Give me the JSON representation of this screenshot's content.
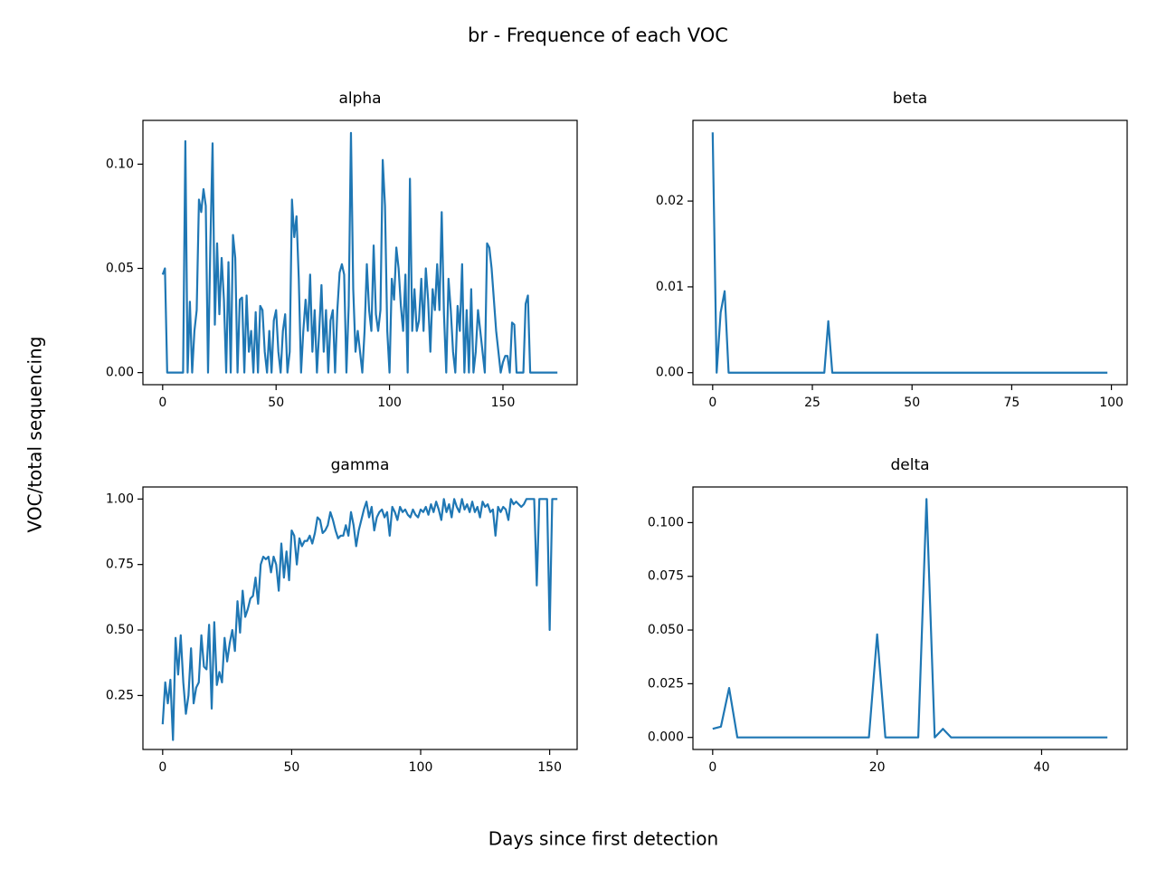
{
  "title": "br - Frequence of each VOC",
  "x_label": "Days since first detection",
  "y_label": "VOC/total sequencing",
  "chart_data": [
    {
      "type": "line",
      "title": "alpha",
      "color": "#1f77b4",
      "x": [
        0,
        1,
        2,
        3,
        4,
        5,
        6,
        7,
        8,
        9,
        10,
        11,
        12,
        13,
        14,
        15,
        16,
        17,
        18,
        19,
        20,
        21,
        22,
        23,
        24,
        25,
        26,
        27,
        28,
        29,
        30,
        31,
        32,
        33,
        34,
        35,
        36,
        37,
        38,
        39,
        40,
        41,
        42,
        43,
        44,
        45,
        46,
        47,
        48,
        49,
        50,
        51,
        52,
        53,
        54,
        55,
        56,
        57,
        58,
        59,
        60,
        61,
        62,
        63,
        64,
        65,
        66,
        67,
        68,
        69,
        70,
        71,
        72,
        73,
        74,
        75,
        76,
        77,
        78,
        79,
        80,
        81,
        82,
        83,
        84,
        85,
        86,
        87,
        88,
        89,
        90,
        91,
        92,
        93,
        94,
        95,
        96,
        97,
        98,
        99,
        100,
        101,
        102,
        103,
        104,
        105,
        106,
        107,
        108,
        109,
        110,
        111,
        112,
        113,
        114,
        115,
        116,
        117,
        118,
        119,
        120,
        121,
        122,
        123,
        124,
        125,
        126,
        127,
        128,
        129,
        130,
        131,
        132,
        133,
        134,
        135,
        136,
        137,
        138,
        139,
        140,
        141,
        142,
        143,
        144,
        145,
        146,
        147,
        148,
        149,
        150,
        151,
        152,
        153,
        154,
        155,
        156,
        157,
        158,
        159,
        160,
        161,
        162,
        163,
        164,
        165,
        166,
        167,
        168,
        169,
        170,
        171,
        172,
        173,
        174
      ],
      "values": [
        0.047,
        0.05,
        0,
        0,
        0,
        0,
        0,
        0,
        0,
        0,
        0.111,
        0,
        0.034,
        0,
        0.02,
        0.03,
        0.083,
        0.077,
        0.088,
        0.08,
        0,
        0.06,
        0.11,
        0.023,
        0.062,
        0.028,
        0.055,
        0.035,
        0,
        0.053,
        0,
        0.066,
        0.055,
        0,
        0.035,
        0.036,
        0,
        0.037,
        0.01,
        0.02,
        0,
        0.029,
        0,
        0.032,
        0.03,
        0.01,
        0,
        0.02,
        0,
        0.025,
        0.03,
        0.01,
        0,
        0.02,
        0.028,
        0,
        0.01,
        0.083,
        0.065,
        0.075,
        0.045,
        0,
        0.02,
        0.035,
        0.02,
        0.047,
        0.01,
        0.03,
        0,
        0.02,
        0.042,
        0.01,
        0.03,
        0,
        0.025,
        0.03,
        0,
        0.03,
        0.048,
        0.052,
        0.047,
        0,
        0.032,
        0.115,
        0.04,
        0.01,
        0.02,
        0.01,
        0,
        0.02,
        0.052,
        0.03,
        0.02,
        0.061,
        0.028,
        0.02,
        0.03,
        0.102,
        0.08,
        0.02,
        0,
        0.045,
        0.035,
        0.06,
        0.05,
        0.032,
        0.02,
        0.047,
        0,
        0.093,
        0.02,
        0.04,
        0.02,
        0.025,
        0.045,
        0.02,
        0.05,
        0.035,
        0.01,
        0.04,
        0.03,
        0.052,
        0.03,
        0.077,
        0.028,
        0,
        0.045,
        0.03,
        0.01,
        0,
        0.032,
        0.02,
        0.052,
        0,
        0.03,
        0,
        0.04,
        0,
        0.01,
        0.03,
        0.02,
        0.01,
        0,
        0.062,
        0.06,
        0.05,
        0.035,
        0.02,
        0.01,
        0,
        0.005,
        0.008,
        0.008,
        0,
        0.024,
        0.023,
        0,
        0,
        0,
        0,
        0.033,
        0.037,
        0,
        0,
        0,
        0,
        0,
        0,
        0,
        0,
        0,
        0,
        0,
        0,
        0
      ],
      "xlim": [
        -8.7,
        182.7
      ],
      "xticks": [
        0,
        50,
        100,
        150
      ],
      "ylim": [
        -0.0058,
        0.121
      ],
      "yticks": [
        {
          "value": 0,
          "label": "0.00"
        },
        {
          "value": 0.05,
          "label": "0.05"
        },
        {
          "value": 0.1,
          "label": "0.10"
        }
      ]
    },
    {
      "type": "line",
      "title": "beta",
      "color": "#1f77b4",
      "x": [
        0,
        1,
        2,
        3,
        4,
        5,
        6,
        7,
        8,
        9,
        10,
        11,
        12,
        13,
        14,
        15,
        16,
        17,
        18,
        19,
        20,
        21,
        22,
        23,
        24,
        25,
        26,
        27,
        28,
        29,
        30,
        31,
        32,
        33,
        34,
        35,
        36,
        37,
        38,
        39,
        40,
        41,
        42,
        43,
        44,
        45,
        46,
        47,
        48,
        49,
        50,
        51,
        52,
        53,
        54,
        55,
        56,
        57,
        58,
        59,
        60,
        61,
        62,
        63,
        64,
        65,
        66,
        67,
        68,
        69,
        70,
        71,
        72,
        73,
        74,
        75,
        76,
        77,
        78,
        79,
        80,
        81,
        82,
        83,
        84,
        85,
        86,
        87,
        88,
        89,
        90,
        91,
        92,
        93,
        94,
        95,
        96,
        97,
        98,
        99
      ],
      "values": [
        0.028,
        0,
        0.007,
        0.0095,
        0,
        0,
        0,
        0,
        0,
        0,
        0,
        0,
        0,
        0,
        0,
        0,
        0,
        0,
        0,
        0,
        0,
        0,
        0,
        0,
        0,
        0,
        0,
        0,
        0,
        0.006,
        0,
        0,
        0,
        0,
        0,
        0,
        0,
        0,
        0,
        0,
        0,
        0,
        0,
        0,
        0,
        0,
        0,
        0,
        0,
        0,
        0,
        0,
        0,
        0,
        0,
        0,
        0,
        0,
        0,
        0,
        0,
        0,
        0,
        0,
        0,
        0,
        0,
        0,
        0,
        0,
        0,
        0,
        0,
        0,
        0,
        0,
        0,
        0,
        0,
        0,
        0,
        0,
        0,
        0,
        0,
        0,
        0,
        0,
        0,
        0,
        0,
        0,
        0,
        0,
        0,
        0,
        0,
        0,
        0,
        0
      ],
      "xlim": [
        -4.95,
        103.95
      ],
      "xticks": [
        0,
        25,
        50,
        75,
        100
      ],
      "ylim": [
        -0.0014,
        0.0294
      ],
      "yticks": [
        {
          "value": 0,
          "label": "0.00"
        },
        {
          "value": 0.01,
          "label": "0.01"
        },
        {
          "value": 0.02,
          "label": "0.02"
        }
      ]
    },
    {
      "type": "line",
      "title": "gamma",
      "color": "#1f77b4",
      "x": [
        0,
        1,
        2,
        3,
        4,
        5,
        6,
        7,
        8,
        9,
        10,
        11,
        12,
        13,
        14,
        15,
        16,
        17,
        18,
        19,
        20,
        21,
        22,
        23,
        24,
        25,
        26,
        27,
        28,
        29,
        30,
        31,
        32,
        33,
        34,
        35,
        36,
        37,
        38,
        39,
        40,
        41,
        42,
        43,
        44,
        45,
        46,
        47,
        48,
        49,
        50,
        51,
        52,
        53,
        54,
        55,
        56,
        57,
        58,
        59,
        60,
        61,
        62,
        63,
        64,
        65,
        66,
        67,
        68,
        69,
        70,
        71,
        72,
        73,
        74,
        75,
        76,
        77,
        78,
        79,
        80,
        81,
        82,
        83,
        84,
        85,
        86,
        87,
        88,
        89,
        90,
        91,
        92,
        93,
        94,
        95,
        96,
        97,
        98,
        99,
        100,
        101,
        102,
        103,
        104,
        105,
        106,
        107,
        108,
        109,
        110,
        111,
        112,
        113,
        114,
        115,
        116,
        117,
        118,
        119,
        120,
        121,
        122,
        123,
        124,
        125,
        126,
        127,
        128,
        129,
        130,
        131,
        132,
        133,
        134,
        135,
        136,
        137,
        138,
        139,
        140,
        141,
        142,
        143,
        144,
        145,
        146,
        147,
        148,
        149,
        150,
        151,
        152,
        153
      ],
      "values": [
        0.14,
        0.3,
        0.22,
        0.31,
        0.08,
        0.47,
        0.33,
        0.48,
        0.3,
        0.18,
        0.25,
        0.43,
        0.22,
        0.28,
        0.3,
        0.48,
        0.36,
        0.35,
        0.52,
        0.2,
        0.53,
        0.29,
        0.34,
        0.3,
        0.47,
        0.38,
        0.45,
        0.5,
        0.42,
        0.61,
        0.49,
        0.65,
        0.55,
        0.58,
        0.62,
        0.63,
        0.7,
        0.6,
        0.75,
        0.78,
        0.77,
        0.78,
        0.72,
        0.78,
        0.75,
        0.65,
        0.83,
        0.7,
        0.8,
        0.69,
        0.88,
        0.86,
        0.75,
        0.85,
        0.82,
        0.84,
        0.84,
        0.86,
        0.83,
        0.87,
        0.93,
        0.92,
        0.87,
        0.88,
        0.9,
        0.95,
        0.92,
        0.88,
        0.85,
        0.86,
        0.86,
        0.9,
        0.86,
        0.95,
        0.9,
        0.82,
        0.88,
        0.92,
        0.96,
        0.99,
        0.93,
        0.97,
        0.88,
        0.93,
        0.95,
        0.96,
        0.93,
        0.95,
        0.86,
        0.97,
        0.95,
        0.92,
        0.97,
        0.95,
        0.96,
        0.94,
        0.93,
        0.96,
        0.94,
        0.93,
        0.96,
        0.95,
        0.97,
        0.94,
        0.98,
        0.95,
        0.99,
        0.96,
        0.92,
        1.0,
        0.95,
        0.98,
        0.93,
        1.0,
        0.97,
        0.95,
        1.0,
        0.96,
        0.98,
        0.95,
        0.99,
        0.95,
        0.97,
        0.93,
        0.99,
        0.97,
        0.98,
        0.95,
        0.96,
        0.86,
        0.97,
        0.95,
        0.97,
        0.96,
        0.92,
        1.0,
        0.98,
        0.99,
        0.98,
        0.97,
        0.98,
        1.0,
        1.0,
        1.0,
        1.0,
        0.67,
        1.0,
        1.0,
        1.0,
        1.0,
        0.5,
        1.0,
        1.0,
        1.0
      ],
      "xlim": [
        -7.65,
        160.65
      ],
      "xticks": [
        0,
        50,
        100,
        150
      ],
      "ylim": [
        0.044,
        1.046
      ],
      "yticks": [
        {
          "value": 0.25,
          "label": "0.25"
        },
        {
          "value": 0.5,
          "label": "0.50"
        },
        {
          "value": 0.75,
          "label": "0.75"
        },
        {
          "value": 1.0,
          "label": "1.00"
        }
      ]
    },
    {
      "type": "line",
      "title": "delta",
      "color": "#1f77b4",
      "x": [
        0,
        1,
        2,
        3,
        4,
        5,
        6,
        7,
        8,
        9,
        10,
        11,
        12,
        13,
        14,
        15,
        16,
        17,
        18,
        19,
        20,
        21,
        22,
        23,
        24,
        25,
        26,
        27,
        28,
        29,
        30,
        31,
        32,
        33,
        34,
        35,
        36,
        37,
        38,
        39,
        40,
        41,
        42,
        43,
        44,
        45,
        46,
        47,
        48
      ],
      "values": [
        0.004,
        0.005,
        0.023,
        0,
        0,
        0,
        0,
        0,
        0,
        0,
        0,
        0,
        0,
        0,
        0,
        0,
        0,
        0,
        0,
        0,
        0.048,
        0,
        0,
        0,
        0,
        0,
        0.111,
        0,
        0.004,
        0,
        0,
        0,
        0,
        0,
        0,
        0,
        0,
        0,
        0,
        0,
        0,
        0,
        0,
        0,
        0,
        0,
        0,
        0,
        0
      ],
      "xlim": [
        -2.4,
        50.4
      ],
      "xticks": [
        0,
        20,
        40
      ],
      "ylim": [
        -0.0056,
        0.1166
      ],
      "yticks": [
        {
          "value": 0,
          "label": "0.000"
        },
        {
          "value": 0.025,
          "label": "0.025"
        },
        {
          "value": 0.05,
          "label": "0.050"
        },
        {
          "value": 0.075,
          "label": "0.075"
        },
        {
          "value": 0.1,
          "label": "0.100"
        }
      ]
    }
  ]
}
